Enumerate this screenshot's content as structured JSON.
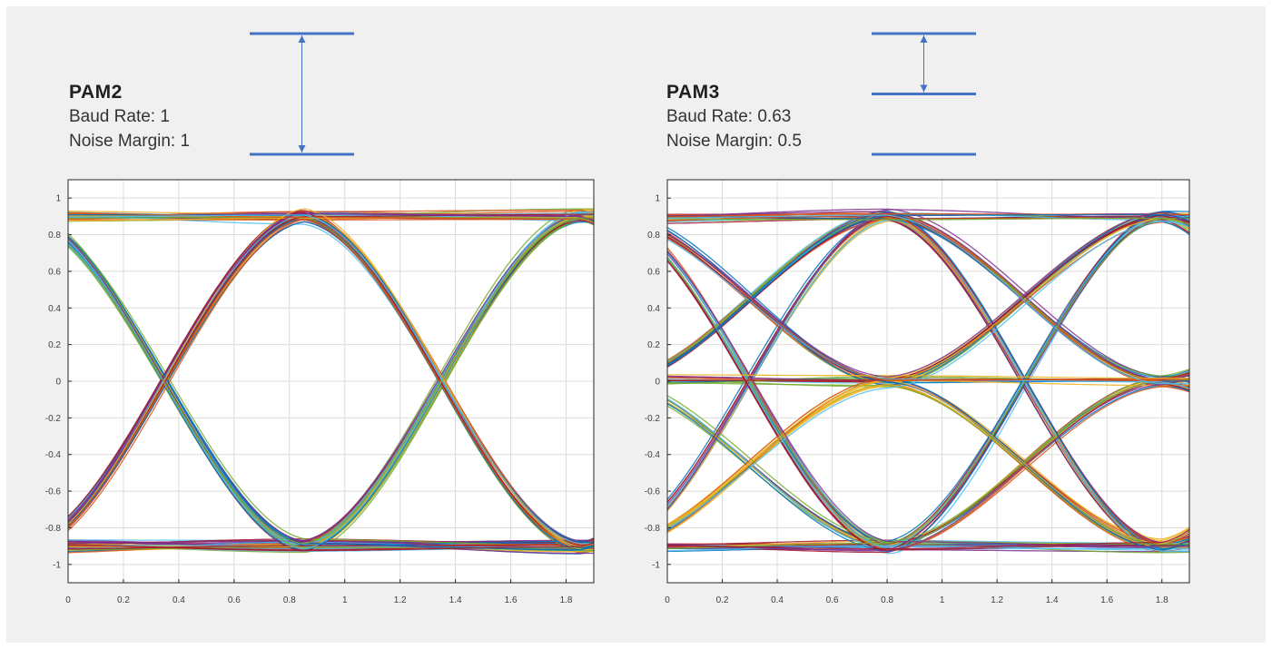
{
  "colors": {
    "background": "#f0f0f0",
    "plot_background": "#ffffff",
    "grid": "#dcdcdc",
    "axis": "#262626",
    "marker": "#4472c4",
    "trace_palette": [
      "#0072bd",
      "#d95319",
      "#edb120",
      "#7e2f8e",
      "#77ac30",
      "#4dbeee",
      "#a2142f"
    ]
  },
  "left_caption": {
    "title": "PAM2",
    "baud": "Baud Rate: 1",
    "noise": "Noise Margin: 1"
  },
  "right_caption": {
    "title": "PAM3",
    "baud": "Baud Rate: 0.63",
    "noise": "Noise Margin: 0.5"
  },
  "chart_data": [
    {
      "type": "line",
      "title": "PAM2",
      "xlabel": "",
      "ylabel": "",
      "xlim": [
        0,
        1.9
      ],
      "ylim": [
        -1.1,
        1.1
      ],
      "xticks": [
        "0",
        "0.2",
        "0.4",
        "0.6",
        "0.8",
        "1",
        "1.2",
        "1.4",
        "1.6",
        "1.8"
      ],
      "yticks": [
        "1",
        "0.8",
        "0.6",
        "0.4",
        "0.2",
        "0",
        "-0.2",
        "-0.4",
        "-0.6",
        "-0.8",
        "-1"
      ],
      "grid": true,
      "levels": [
        -0.9,
        0.9
      ],
      "crossing_points": [
        [
          0.35,
          0
        ],
        [
          1.35,
          0
        ]
      ],
      "unit_interval": 1.0,
      "phase": -0.15,
      "noise_margin": 1
    },
    {
      "type": "line",
      "title": "PAM3",
      "xlabel": "",
      "ylabel": "",
      "xlim": [
        0,
        1.9
      ],
      "ylim": [
        -1.1,
        1.1
      ],
      "xticks": [
        "0",
        "0.2",
        "0.4",
        "0.6",
        "0.8",
        "1",
        "1.2",
        "1.4",
        "1.6",
        "1.8"
      ],
      "yticks": [
        "1",
        "0.8",
        "0.6",
        "0.4",
        "0.2",
        "0",
        "-0.2",
        "-0.4",
        "-0.6",
        "-0.8",
        "-1"
      ],
      "grid": true,
      "levels": [
        -0.9,
        0,
        0.9
      ],
      "crossing_points": [
        [
          0.28,
          0.45
        ],
        [
          0.28,
          -0.45
        ],
        [
          0.35,
          0
        ],
        [
          1.28,
          0.45
        ],
        [
          1.28,
          -0.45
        ],
        [
          1.35,
          0
        ]
      ],
      "unit_interval": 1.0,
      "phase": -0.2,
      "noise_margin": 0.5
    }
  ],
  "margin_markers": [
    {
      "name": "PAM2",
      "levels": 2,
      "arrow_spans": [
        [
          0,
          1
        ]
      ]
    },
    {
      "name": "PAM3",
      "levels": 3,
      "arrow_spans": [
        [
          0,
          1
        ]
      ]
    }
  ]
}
